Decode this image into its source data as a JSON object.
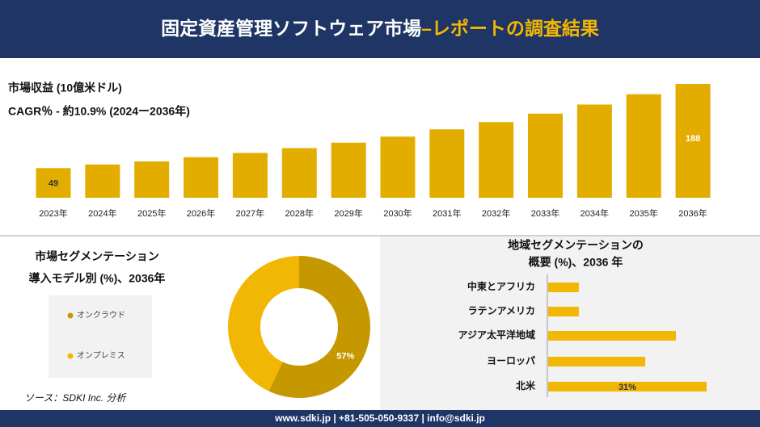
{
  "header": {
    "title": "固定資産管理ソフトウェア市場",
    "title_accent": "–レポートの調査結果"
  },
  "chart_data": [
    {
      "type": "bar",
      "title": "市場収益 (10億米ドル)",
      "subtitle": "CAGR％ - 約10.9% (2024ー2036年)",
      "categories": [
        "2023年",
        "2024年",
        "2025年",
        "2026年",
        "2027年",
        "2028年",
        "2029年",
        "2030年",
        "2031年",
        "2032年",
        "2033年",
        "2034年",
        "2035年",
        "2036年"
      ],
      "values": [
        49,
        55,
        60,
        67,
        74,
        82,
        91,
        101,
        113,
        125,
        139,
        154,
        171,
        188
      ],
      "value_labels": [
        "49",
        null,
        null,
        null,
        null,
        null,
        null,
        null,
        null,
        null,
        null,
        null,
        null,
        "188"
      ],
      "color": "#e3ad00"
    },
    {
      "type": "donut",
      "title": "市場セグメンテーション",
      "subtitle": "導入モデル別 (%)、2036年",
      "series": [
        {
          "name": "オンクラウド",
          "color": "#c69800",
          "value": 57,
          "value_label": "57%"
        },
        {
          "name": "オンプレミス",
          "color": "#f2b705",
          "value": 43
        }
      ]
    },
    {
      "type": "hbar",
      "title": "地域セグメンテーションの",
      "subtitle": "概要 (%)、2036 年",
      "categories": [
        "中東とアフリカ",
        "ラテンアメリカ",
        "アジア太平洋地域",
        "ヨーロッパ",
        "北米"
      ],
      "values": [
        6,
        6,
        25,
        19,
        31
      ],
      "value_labels": [
        null,
        null,
        null,
        null,
        "31%"
      ],
      "color": "#f2b705"
    }
  ],
  "source": "ソース：SDKI Inc. 分析",
  "footer": "www.sdki.jp | +81-505-050-9337 | info@sdki.jp"
}
